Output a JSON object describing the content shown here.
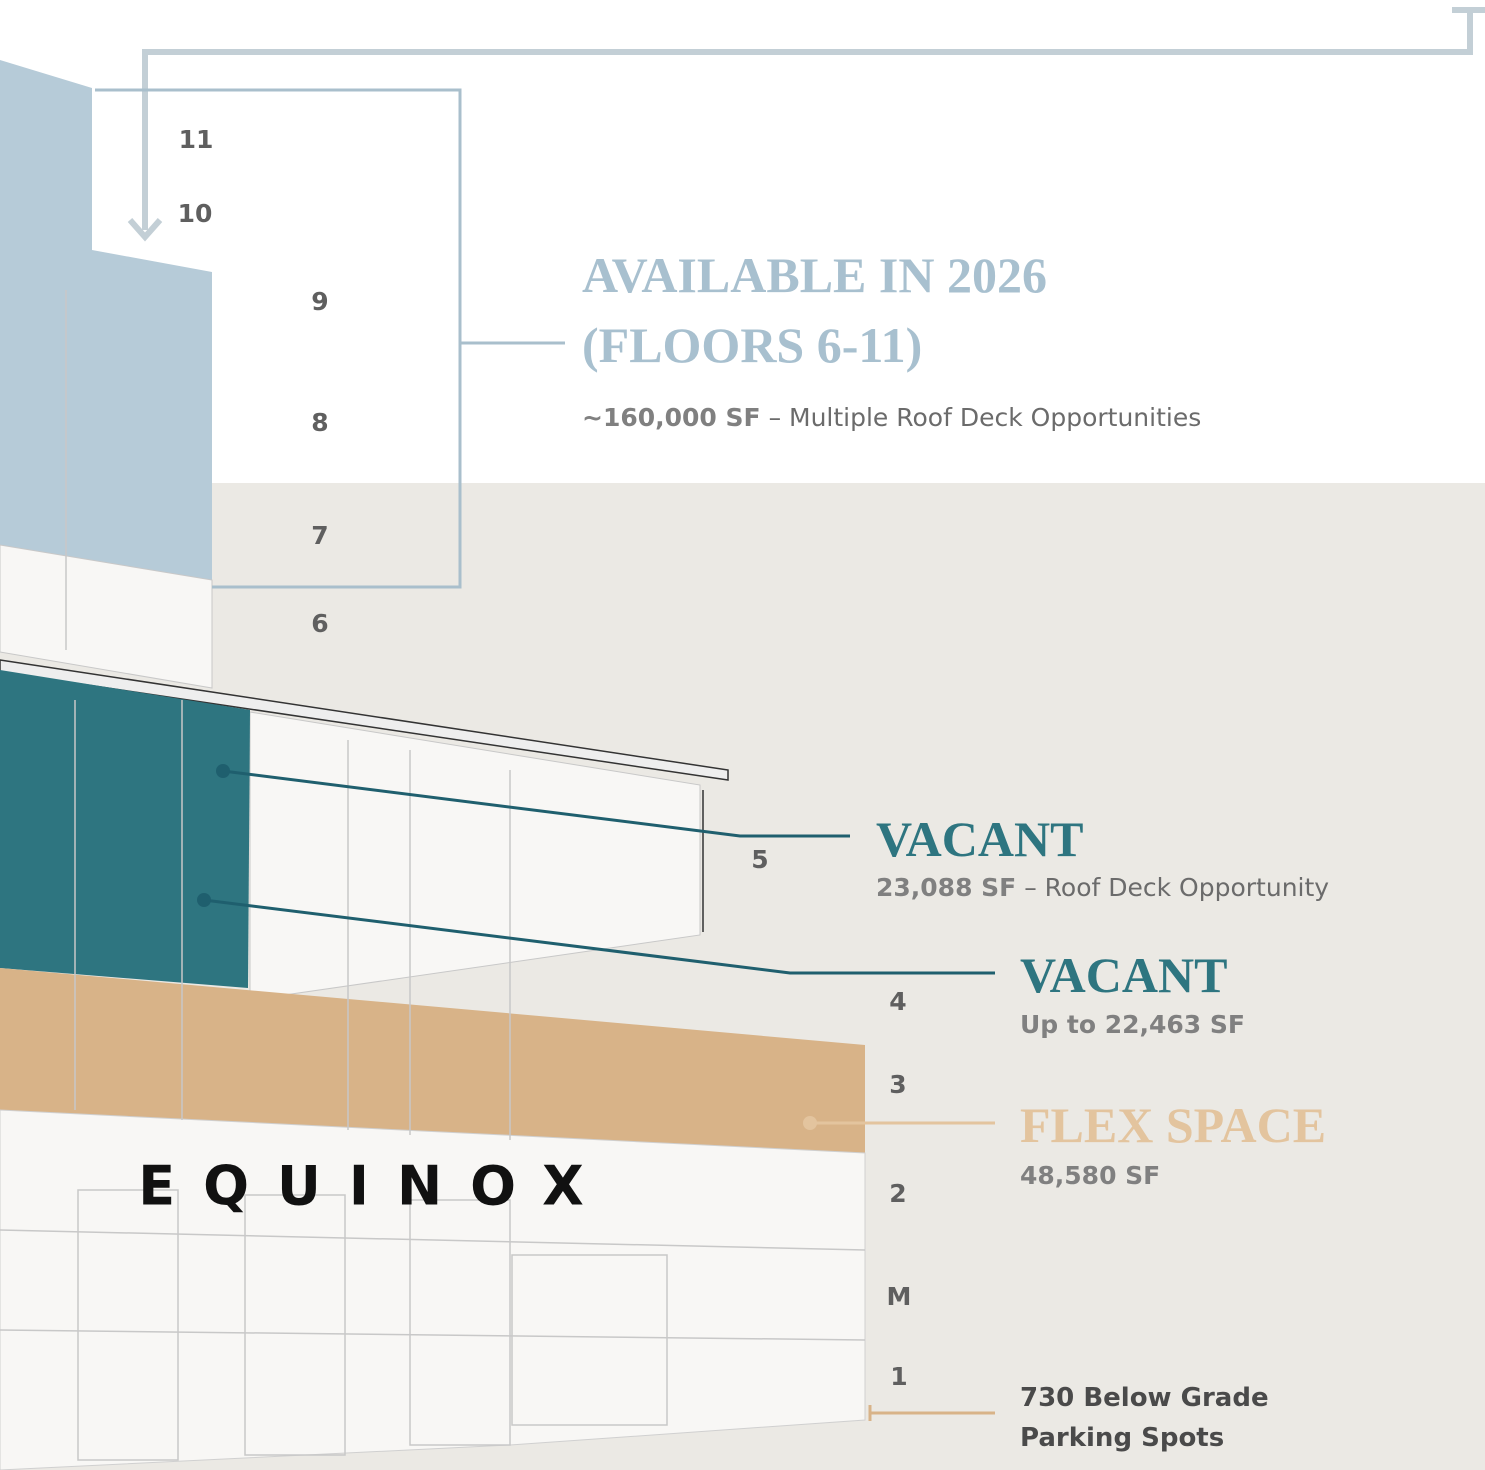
{
  "floors": [
    "11",
    "10",
    "9",
    "8",
    "7",
    "6",
    "5",
    "4",
    "3",
    "2",
    "M",
    "1"
  ],
  "sign": "EQUINOX",
  "callouts": [
    {
      "title": "AVAILABLE IN 2026",
      "title_line2": "(FLOORS 6-11)",
      "area": "~160,000 SF",
      "detail": "– Multiple Roof Deck Opportunities"
    },
    {
      "title": "VACANT",
      "area": "23,088 SF",
      "detail": "– Roof Deck Opportunity"
    },
    {
      "title": "VACANT",
      "area": "Up to 22,463 SF"
    },
    {
      "title": "FLEX SPACE",
      "area": "48,580 SF"
    }
  ],
  "parking": [
    "730 Below Grade",
    "Parking Spots"
  ]
}
